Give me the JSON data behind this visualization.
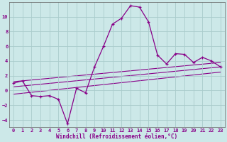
{
  "xlabel": "Windchill (Refroidissement éolien,°C)",
  "bg_color": "#cce8e8",
  "grid_color": "#aacccc",
  "line_color": "#880088",
  "xlim": [
    -0.5,
    23.5
  ],
  "ylim": [
    -5,
    12
  ],
  "xticks": [
    0,
    1,
    2,
    3,
    4,
    5,
    6,
    7,
    8,
    9,
    10,
    11,
    12,
    13,
    14,
    15,
    16,
    17,
    18,
    19,
    20,
    21,
    22,
    23
  ],
  "yticks": [
    -4,
    -2,
    0,
    2,
    4,
    6,
    8,
    10
  ],
  "line1_x": [
    0,
    1,
    2,
    3,
    4,
    5,
    6,
    7,
    8,
    9,
    10,
    11,
    12,
    13,
    14,
    15,
    16,
    17,
    18,
    19,
    20,
    21,
    22,
    23
  ],
  "line1_y": [
    1.0,
    1.3,
    -0.7,
    -0.8,
    -0.7,
    -1.2,
    -4.5,
    0.3,
    -0.3,
    3.2,
    6.0,
    9.0,
    9.8,
    11.5,
    11.3,
    9.3,
    4.8,
    3.6,
    5.0,
    4.9,
    3.8,
    4.5,
    4.0,
    3.2
  ],
  "line2_x": [
    0,
    23
  ],
  "line2_y": [
    1.2,
    3.8
  ],
  "line3_x": [
    0,
    23
  ],
  "line3_y": [
    0.5,
    3.2
  ],
  "line4_x": [
    0,
    23
  ],
  "line4_y": [
    -0.5,
    2.5
  ],
  "tick_fontsize": 5.0,
  "xlabel_fontsize": 5.5
}
